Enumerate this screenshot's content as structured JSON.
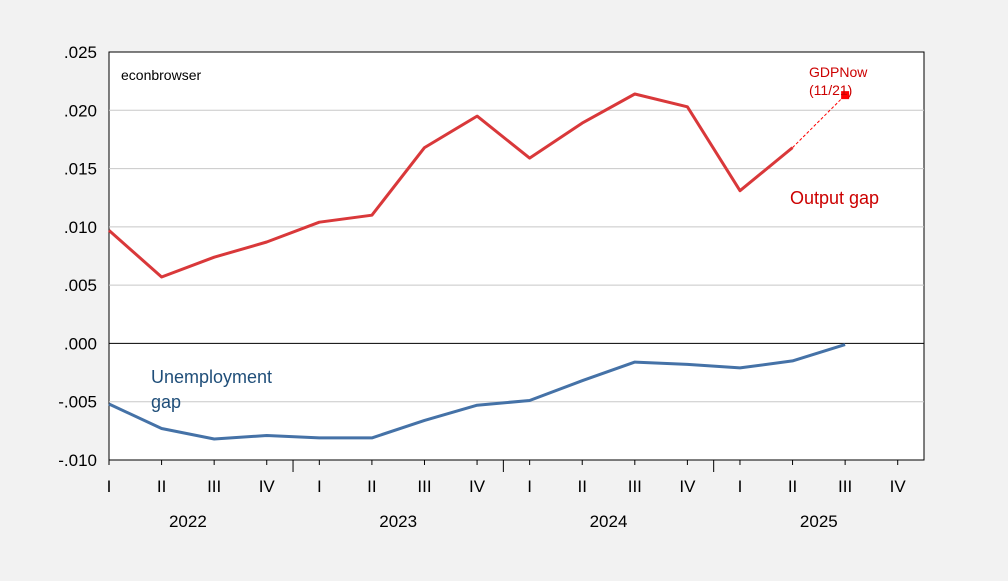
{
  "chart_data": {
    "type": "line",
    "watermark": "econbrowser",
    "categories": [
      "2022Q1",
      "2022Q2",
      "2022Q3",
      "2022Q4",
      "2023Q1",
      "2023Q2",
      "2023Q3",
      "2023Q4",
      "2024Q1",
      "2024Q2",
      "2024Q3",
      "2024Q4",
      "2025Q1",
      "2025Q2",
      "2025Q3",
      "2025Q4"
    ],
    "quarter_labels": [
      "I",
      "II",
      "III",
      "IV",
      "I",
      "II",
      "III",
      "IV",
      "I",
      "II",
      "III",
      "IV",
      "I",
      "II",
      "III",
      "IV"
    ],
    "year_labels": [
      "2022",
      "2023",
      "2024",
      "2025"
    ],
    "ylim": [
      -0.01,
      0.025
    ],
    "yticks": [
      {
        "value": 0.025,
        "label": ".025"
      },
      {
        "value": 0.02,
        "label": ".020"
      },
      {
        "value": 0.015,
        "label": ".015"
      },
      {
        "value": 0.01,
        "label": ".010"
      },
      {
        "value": 0.005,
        "label": ".005"
      },
      {
        "value": 0.0,
        "label": ".000"
      },
      {
        "value": -0.005,
        "label": "-.005"
      },
      {
        "value": -0.01,
        "label": "-.010"
      }
    ],
    "grid": true,
    "series": [
      {
        "name": "Output gap",
        "color": "#d9383a",
        "values": [
          0.0097,
          0.0057,
          0.0074,
          0.0087,
          0.0104,
          0.011,
          0.0168,
          0.0195,
          0.0159,
          0.0189,
          0.0214,
          0.0203,
          0.0131,
          0.0168,
          null,
          null
        ]
      },
      {
        "name": "Unemployment gap",
        "color": "#4572a7",
        "values": [
          -0.0052,
          -0.0073,
          -0.0082,
          -0.0079,
          -0.0081,
          -0.0081,
          -0.0066,
          -0.0053,
          -0.0049,
          -0.0032,
          -0.0016,
          -0.0018,
          -0.0021,
          -0.0015,
          -0.0001,
          null
        ]
      }
    ],
    "gdpnow": {
      "label_line1": "GDPNow",
      "label_line2": "(11/21)",
      "from_category_index": 13,
      "from_value": 0.0168,
      "category_index": 14,
      "value": 0.0213,
      "color": "#ff0000"
    },
    "annotations": {
      "output_gap": "Output gap",
      "unemployment_line1": "Unemployment",
      "unemployment_line2": "gap"
    }
  }
}
